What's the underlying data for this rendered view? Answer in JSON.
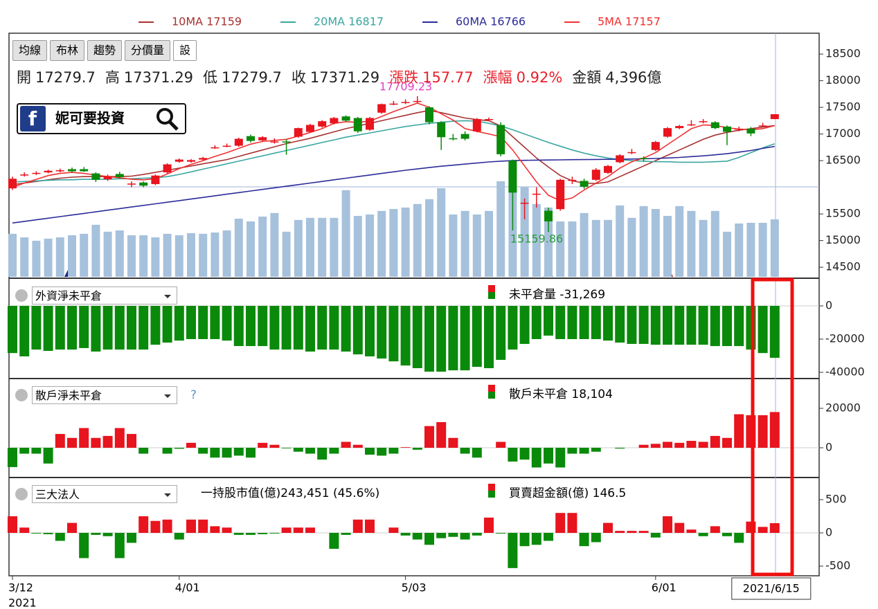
{
  "tabs": [
    "均線",
    "布林",
    "趨勢",
    "分價量",
    "設"
  ],
  "info": [
    {
      "label": "開",
      "value": "17279.7",
      "color": "#222"
    },
    {
      "label": "高",
      "value": "17371.29",
      "color": "#222"
    },
    {
      "label": "低",
      "value": "17279.7",
      "color": "#222"
    },
    {
      "label": "收",
      "value": "17371.29",
      "color": "#222"
    },
    {
      "label": "漲跌",
      "value": "157.77",
      "color": "#e8202a"
    },
    {
      "label": "漲幅",
      "value": "0.92%",
      "color": "#e8202a"
    },
    {
      "label": "金額",
      "value": "4,396億",
      "color": "#222"
    }
  ],
  "brand": "妮可要投資",
  "chart_data": [
    {
      "type": "candlestick",
      "categories": [
        "3/12",
        null,
        null,
        null,
        null,
        null,
        null,
        null,
        null,
        null,
        null,
        null,
        null,
        null,
        "4/01",
        null,
        null,
        null,
        null,
        null,
        null,
        null,
        null,
        null,
        null,
        null,
        null,
        null,
        null,
        null,
        null,
        null,
        null,
        "5/03",
        null,
        null,
        null,
        null,
        null,
        null,
        null,
        null,
        null,
        null,
        null,
        null,
        null,
        null,
        null,
        null,
        null,
        null,
        null,
        null,
        "6/01",
        null,
        null,
        null,
        null,
        null,
        null,
        null,
        null,
        null,
        "2021/6/15"
      ],
      "x_year": "2021",
      "open": [
        15980,
        16230,
        16260,
        16280,
        16300,
        16340,
        16340,
        16260,
        16150,
        16250,
        16060,
        16090,
        16060,
        16280,
        16480,
        16480,
        16520,
        16740,
        16770,
        16780,
        16960,
        16880,
        16850,
        16860,
        16950,
        17040,
        17140,
        17200,
        17330,
        17300,
        17080,
        17400,
        17560,
        17590,
        17610,
        17500,
        17220,
        16920,
        17000,
        17050,
        17270,
        17170,
        16500,
        15700,
        15870,
        15560,
        15590,
        16130,
        16120,
        16140,
        16270,
        16470,
        16650,
        16550,
        16700,
        16950,
        17110,
        17180,
        17240,
        17220,
        17140,
        17090,
        17100,
        17160,
        17279.7
      ],
      "high": [
        16200,
        16280,
        16300,
        16330,
        16350,
        16370,
        16380,
        16280,
        16240,
        16290,
        16110,
        16110,
        16240,
        16450,
        16540,
        16530,
        16570,
        16790,
        16820,
        16930,
        16990,
        16960,
        16920,
        16900,
        17120,
        17190,
        17260,
        17320,
        17350,
        17320,
        17320,
        17570,
        17620,
        17650,
        17709.23,
        17520,
        17240,
        17000,
        17050,
        17300,
        17310,
        17220,
        16520,
        15790,
        16000,
        15620,
        16160,
        16200,
        16160,
        16360,
        16420,
        16620,
        16720,
        16580,
        16870,
        17130,
        17170,
        17260,
        17280,
        17240,
        17160,
        17140,
        17130,
        17210,
        17371.29
      ],
      "low": [
        15950,
        16200,
        16230,
        16260,
        16280,
        16280,
        16290,
        16100,
        16120,
        16170,
        16000,
        16000,
        16040,
        16260,
        16460,
        16460,
        16500,
        16720,
        16750,
        16760,
        16840,
        16860,
        16820,
        16610,
        16930,
        17020,
        17120,
        17180,
        17230,
        17020,
        17060,
        17380,
        17540,
        17560,
        17580,
        17180,
        16700,
        16880,
        16880,
        17030,
        17240,
        16580,
        15190,
        15400,
        15620,
        15159.86,
        15560,
        16060,
        15970,
        16120,
        16250,
        16450,
        16620,
        16480,
        16680,
        16930,
        17090,
        17150,
        17200,
        17090,
        16790,
        17050,
        16960,
        17140,
        17279.7
      ],
      "close": [
        16160,
        16240,
        16270,
        16310,
        16320,
        16300,
        16300,
        16140,
        16210,
        16190,
        16070,
        16030,
        16220,
        16430,
        16520,
        16510,
        16550,
        16750,
        16780,
        16910,
        16870,
        16940,
        16860,
        16850,
        17110,
        17170,
        17240,
        17300,
        17250,
        17050,
        17300,
        17560,
        17570,
        17600,
        17620,
        17220,
        16940,
        16910,
        16910,
        17280,
        17280,
        16620,
        15900,
        15710,
        15880,
        15360,
        16140,
        16140,
        16010,
        16330,
        16400,
        16600,
        16660,
        16530,
        16850,
        17110,
        17150,
        17180,
        17240,
        17110,
        17040,
        17100,
        17010,
        17160,
        17371.29
      ],
      "colors": {
        "up": "#e8141e",
        "down": "#0a8a0a"
      },
      "volume": {
        "color": "#a6c1dc",
        "vlim": [
          0,
          9000
        ],
        "values": [
          3290,
          3020,
          2760,
          2920,
          3020,
          3180,
          3290,
          3980,
          3450,
          3550,
          3180,
          3180,
          3020,
          3290,
          3180,
          3340,
          3290,
          3390,
          3550,
          4450,
          4240,
          4610,
          4880,
          3450,
          4350,
          4510,
          4510,
          4510,
          6630,
          4660,
          4770,
          5040,
          5190,
          5300,
          5570,
          5940,
          6780,
          4770,
          5040,
          4770,
          5040,
          7310,
          8220,
          6890,
          5570,
          5300,
          4240,
          4240,
          4880,
          4350,
          4350,
          5460,
          4510,
          5410,
          5190,
          4660,
          5410,
          5040,
          4350,
          5040,
          3450,
          4080,
          4130,
          4130,
          4396
        ]
      },
      "series": [
        {
          "name": "10MA 17159",
          "color": "#a83232",
          "values": [
            16050,
            16080,
            16110,
            16140,
            16170,
            16190,
            16200,
            16200,
            16200,
            16200,
            16210,
            16240,
            16280,
            16320,
            16360,
            16400,
            16440,
            16480,
            16520,
            16580,
            16640,
            16700,
            16760,
            16820,
            16870,
            16920,
            16980,
            17040,
            17100,
            17150,
            17200,
            17250,
            17300,
            17350,
            17400,
            17440,
            17400,
            17350,
            17300,
            17270,
            17250,
            17150,
            16950,
            16750,
            16550,
            16380,
            16220,
            16120,
            16080,
            16070,
            16100,
            16200,
            16300,
            16400,
            16500,
            16600,
            16700,
            16800,
            16900,
            16980,
            17030,
            17070,
            17100,
            17130,
            17159
          ]
        },
        {
          "name": "20MA 16817",
          "color": "#3aa6a0",
          "values": [
            16100,
            16110,
            16120,
            16130,
            16140,
            16140,
            16150,
            16150,
            16150,
            16160,
            16160,
            16170,
            16180,
            16200,
            16240,
            16290,
            16340,
            16390,
            16440,
            16490,
            16540,
            16590,
            16640,
            16690,
            16740,
            16790,
            16840,
            16890,
            16940,
            16980,
            17020,
            17060,
            17100,
            17140,
            17170,
            17200,
            17220,
            17240,
            17250,
            17240,
            17200,
            17150,
            17080,
            17000,
            16920,
            16840,
            16770,
            16700,
            16640,
            16590,
            16550,
            16520,
            16500,
            16490,
            16480,
            16480,
            16470,
            16470,
            16470,
            16480,
            16490,
            16560,
            16650,
            16740,
            16817
          ]
        },
        {
          "name": "60MA 16766",
          "color": "#2b2b9a",
          "values": [
            15330,
            15360,
            15390,
            15420,
            15450,
            15480,
            15510,
            15540,
            15570,
            15600,
            15630,
            15660,
            15690,
            15720,
            15750,
            15780,
            15810,
            15840,
            15870,
            15900,
            15930,
            15960,
            15990,
            16020,
            16050,
            16080,
            16110,
            16140,
            16170,
            16200,
            16230,
            16260,
            16290,
            16320,
            16345,
            16370,
            16395,
            16415,
            16435,
            16455,
            16475,
            16490,
            16500,
            16505,
            16510,
            16512,
            16515,
            16518,
            16520,
            16522,
            16525,
            16528,
            16530,
            16535,
            16540,
            16550,
            16560,
            16575,
            16590,
            16610,
            16630,
            16660,
            16690,
            16730,
            16766
          ]
        },
        {
          "name": "5MA 17157",
          "color": "#f03030",
          "values": [
            16000,
            16080,
            16150,
            16220,
            16260,
            16280,
            16260,
            16230,
            16200,
            16180,
            16150,
            16140,
            16160,
            16250,
            16350,
            16430,
            16500,
            16580,
            16650,
            16730,
            16810,
            16860,
            16880,
            16900,
            16960,
            17030,
            17100,
            17200,
            17230,
            17220,
            17240,
            17330,
            17420,
            17500,
            17580,
            17500,
            17380,
            17260,
            17100,
            17050,
            17000,
            16950,
            16700,
            16400,
            16100,
            15850,
            15750,
            15800,
            15950,
            16080,
            16200,
            16360,
            16480,
            16550,
            16650,
            16800,
            16950,
            17100,
            17170,
            17160,
            17120,
            17090,
            17080,
            17100,
            17157
          ]
        }
      ],
      "ylim": [
        14320,
        18891
      ],
      "yticks": [
        14500,
        15000,
        15500,
        16500,
        17000,
        17500,
        18000,
        18500
      ],
      "annotations": [
        {
          "text": "17709.23",
          "color": "#e040c0"
        },
        {
          "text": "15159.86",
          "color": "#2a9a3a"
        }
      ]
    },
    {
      "type": "bar",
      "title": "外資淨未平倉",
      "label": "未平倉量 -31,269",
      "colors": {
        "up": "#e8141e",
        "down": "#0a8a0a"
      },
      "values": [
        -28400,
        -30400,
        -26300,
        -27100,
        -26300,
        -26300,
        -25400,
        -27500,
        -26300,
        -26300,
        -26300,
        -26300,
        -23400,
        -22100,
        -20900,
        -20000,
        -20000,
        -20000,
        -20900,
        -24200,
        -24200,
        -24200,
        -26300,
        -26300,
        -26300,
        -27500,
        -26300,
        -26300,
        -27500,
        -29200,
        -30400,
        -31700,
        -33400,
        -35900,
        -37500,
        -39600,
        -39600,
        -38800,
        -38800,
        -36700,
        -37500,
        -32500,
        -26300,
        -22900,
        -20000,
        -17900,
        -20000,
        -20000,
        -20000,
        -20000,
        -20900,
        -22100,
        -22900,
        -22900,
        -23400,
        -23400,
        -23400,
        -23400,
        -23400,
        -24200,
        -24200,
        -24200,
        -26300,
        -28400,
        -31269
      ],
      "ylim": [
        -42920,
        16250
      ],
      "yticks": [
        -40000,
        -20000,
        0
      ]
    },
    {
      "type": "bar",
      "title": "散戶淨未平倉",
      "help": "?",
      "label": "散戶未平倉 18,104",
      "colors": {
        "up": "#e8141e",
        "down": "#0a8a0a"
      },
      "values": [
        -9800,
        -3000,
        -3000,
        -8000,
        7000,
        5000,
        10000,
        5000,
        6000,
        10000,
        7000,
        -3000,
        0,
        -3000,
        -500,
        2500,
        -3000,
        -5000,
        -5000,
        -4000,
        -5000,
        2500,
        1500,
        -300,
        -2000,
        -3000,
        -6000,
        -3000,
        3000,
        1500,
        -3500,
        -4000,
        -3000,
        300,
        -1000,
        11000,
        13000,
        5000,
        -3000,
        -5000,
        0,
        3000,
        -7000,
        -6000,
        -10000,
        -8000,
        -10000,
        -3000,
        -3000,
        -2000,
        0,
        -400,
        0,
        1500,
        2000,
        3000,
        2500,
        3500,
        3000,
        6000,
        5000,
        17000,
        16500,
        16500,
        18104
      ],
      "ylim": [
        -14390,
        34750
      ],
      "yticks": [
        0,
        20000
      ]
    },
    {
      "type": "bar",
      "title": "三大法人",
      "note": "一持股市值(億)243,451 (45.6%)",
      "label": "買賣超金額(億) 146.5",
      "colors": {
        "up": "#e8141e",
        "down": "#0a8a0a"
      },
      "values": [
        250,
        80,
        -10,
        -20,
        -120,
        150,
        -380,
        -30,
        -50,
        -380,
        -150,
        250,
        180,
        200,
        -100,
        200,
        200,
        100,
        80,
        -30,
        -30,
        -20,
        -10,
        80,
        80,
        80,
        0,
        -240,
        -30,
        200,
        200,
        0,
        80,
        -40,
        -100,
        -180,
        -80,
        -60,
        -100,
        -40,
        230,
        -10,
        -530,
        -200,
        -180,
        -120,
        300,
        300,
        -200,
        -140,
        150,
        30,
        30,
        30,
        -70,
        250,
        150,
        50,
        -50,
        100,
        -50,
        -150,
        170,
        90,
        146.5
      ],
      "ylim": [
        -646,
        823
      ],
      "yticks": [
        -500,
        0,
        500
      ]
    }
  ]
}
